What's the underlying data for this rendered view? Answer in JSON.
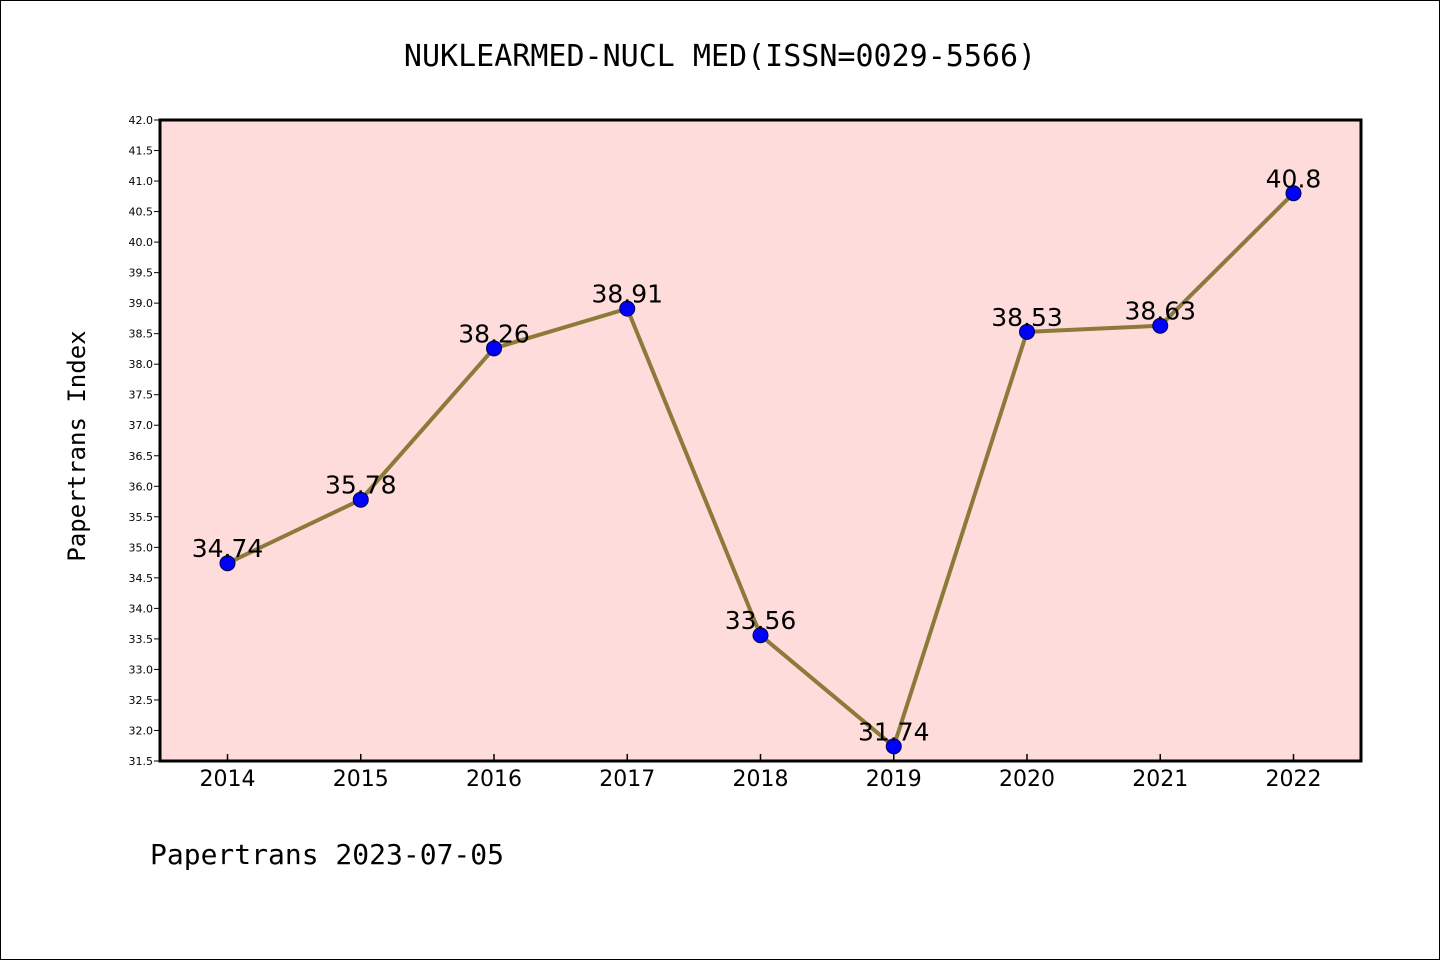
{
  "chart_data": {
    "type": "line",
    "title": "NUKLEARMED-NUCL MED(ISSN=0029-5566)",
    "xlabel": "",
    "ylabel": "Papertrans Index",
    "categories": [
      "2014",
      "2015",
      "2016",
      "2017",
      "2018",
      "2019",
      "2020",
      "2021",
      "2022"
    ],
    "values": [
      34.74,
      35.78,
      38.26,
      38.91,
      33.56,
      31.74,
      38.53,
      38.63,
      40.8
    ],
    "data_labels": [
      "34.74",
      "35.78",
      "38.26",
      "38.91",
      "33.56",
      "31.74",
      "38.53",
      "38.63",
      "40.8"
    ],
    "ylim": [
      31.5,
      42.0
    ],
    "ytick_step": 0.5,
    "ytick_labels": [
      "31.5",
      "32.0",
      "32.5",
      "33.0",
      "33.5",
      "34.0",
      "34.5",
      "35.0",
      "35.5",
      "36.0",
      "36.5",
      "37.0",
      "37.5",
      "38.0",
      "38.5",
      "39.0",
      "39.5",
      "40.0",
      "40.5",
      "41.0",
      "41.5",
      "42.0"
    ],
    "grid": false,
    "colors": {
      "plot_background": "#fddcdb",
      "line": "#8b7a3a",
      "marker": "#0000ff"
    }
  },
  "footer": "Papertrans 2023-07-05"
}
